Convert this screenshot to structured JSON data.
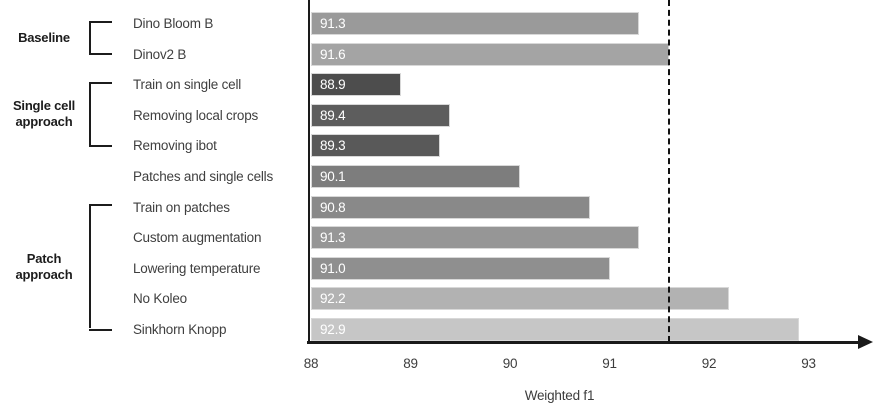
{
  "chart_data": {
    "type": "bar",
    "orientation": "horizontal",
    "title": "",
    "xlabel": "Weighted f1",
    "x_ticks": [
      "88",
      "89",
      "90",
      "91",
      "92",
      "93"
    ],
    "xlim": [
      88,
      93.7
    ],
    "grid": false,
    "reference_line": {
      "value": 91.6,
      "style": "dashed",
      "color": "#111111"
    },
    "categories": [
      "Dino Bloom B",
      "Dinov2 B",
      "Train on single cell",
      "Removing local crops",
      "Removing ibot",
      "Patches and single cells",
      "Train on patches",
      "Custom augmentation",
      "Lowering temperature",
      "No Koleo",
      "Sinkhorn Knopp"
    ],
    "values": [
      91.3,
      91.6,
      88.9,
      89.4,
      89.3,
      90.1,
      90.8,
      91.3,
      91.0,
      92.2,
      92.9
    ],
    "value_labels": [
      "91.3",
      "91.6",
      "88.9",
      "89.4",
      "89.3",
      "90.1",
      "90.8",
      "91.3",
      "91.0",
      "92.2",
      "92.9"
    ],
    "bar_colors": [
      "#9a9a9a",
      "#a4a4a4",
      "#4d4d4d",
      "#5d5d5d",
      "#595959",
      "#7d7d7d",
      "#898989",
      "#969696",
      "#8f8f8f",
      "#b2b2b2",
      "#c6c6c6"
    ],
    "groups": [
      {
        "label_lines": [
          "Baseline"
        ],
        "start_row": 0,
        "end_row": 1
      },
      {
        "label_lines": [
          "Single cell",
          "approach"
        ],
        "start_row": 2,
        "end_row": 4
      },
      {
        "label_lines": [
          "Patch",
          "approach"
        ],
        "start_row": 6,
        "end_row": 10
      }
    ]
  },
  "colors": {
    "axis": "#1a1a1a",
    "category_text": "#3f3f3f",
    "tick_text": "#3d3d3d",
    "value_label_text": "#ffffff",
    "bar_edge": "#d8d8d8",
    "background": "#ffffff"
  }
}
